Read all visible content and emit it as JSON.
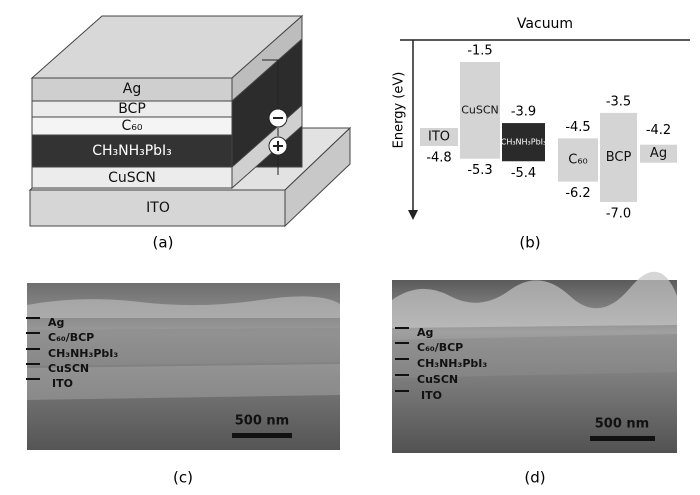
{
  "panel_a": {
    "layers": [
      "Ag",
      "BCP",
      "C₆₀",
      "CH₃NH₃PbI₃",
      "CuSCN",
      "ITO"
    ],
    "caption": "(a)"
  },
  "panel_b": {
    "axis_label": "Energy (eV)",
    "top_label": "Vacuum",
    "materials": [
      {
        "name": "ITO",
        "bottom": "-4.8"
      },
      {
        "name": "CuSCN",
        "top": "-1.5",
        "bottom": "-5.3"
      },
      {
        "name": "CH₃NH₃PbI₃",
        "top": "-3.9",
        "bottom": "-5.4"
      },
      {
        "name": "C₆₀",
        "top": "-4.5",
        "bottom": "-6.2"
      },
      {
        "name": "BCP",
        "top": "-3.5",
        "bottom": "-7.0"
      },
      {
        "name": "Ag",
        "top": "-4.2"
      }
    ],
    "caption": "(b)"
  },
  "panel_c": {
    "labels": [
      "Ag",
      "C₆₀/BCP",
      "CH₃NH₃PbI₃",
      "CuSCN",
      "ITO"
    ],
    "scale_bar": "500 nm",
    "caption": "(c)"
  },
  "panel_d": {
    "labels": [
      "Ag",
      "C₆₀/BCP",
      "CH₃NH₃PbI₃",
      "CuSCN",
      "ITO"
    ],
    "scale_bar": "500 nm",
    "caption": "(d)"
  }
}
